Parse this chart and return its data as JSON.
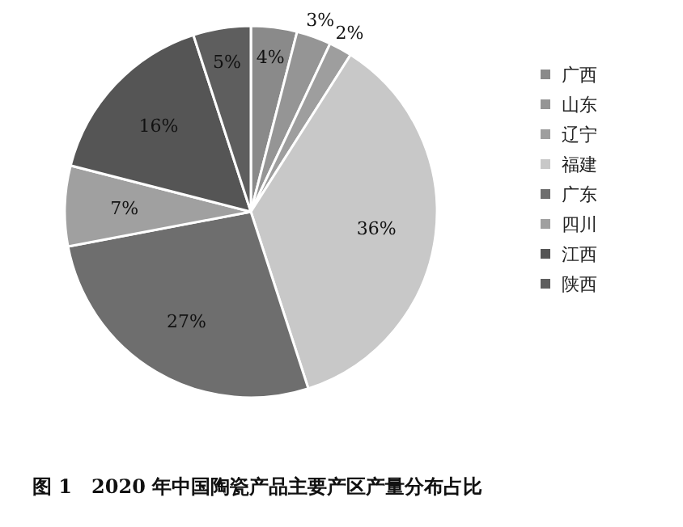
{
  "chart_data": {
    "type": "pie",
    "title": "图 1　2020 年中国陶瓷产品主要产区产量分布占比",
    "categories": [
      "广西",
      "山东",
      "辽宁",
      "福建",
      "广东",
      "四川",
      "江西",
      "陕西"
    ],
    "values": [
      4,
      3,
      2,
      36,
      27,
      7,
      16,
      5
    ],
    "value_labels": [
      "4%",
      "3%",
      "2%",
      "36%",
      "27%",
      "7%",
      "16%",
      "5%"
    ],
    "colors": [
      "#8a8a8a",
      "#959595",
      "#9e9e9e",
      "#c8c8c8",
      "#6e6e6e",
      "#a0a0a0",
      "#555555",
      "#5e5e5e"
    ],
    "legend": "right"
  }
}
